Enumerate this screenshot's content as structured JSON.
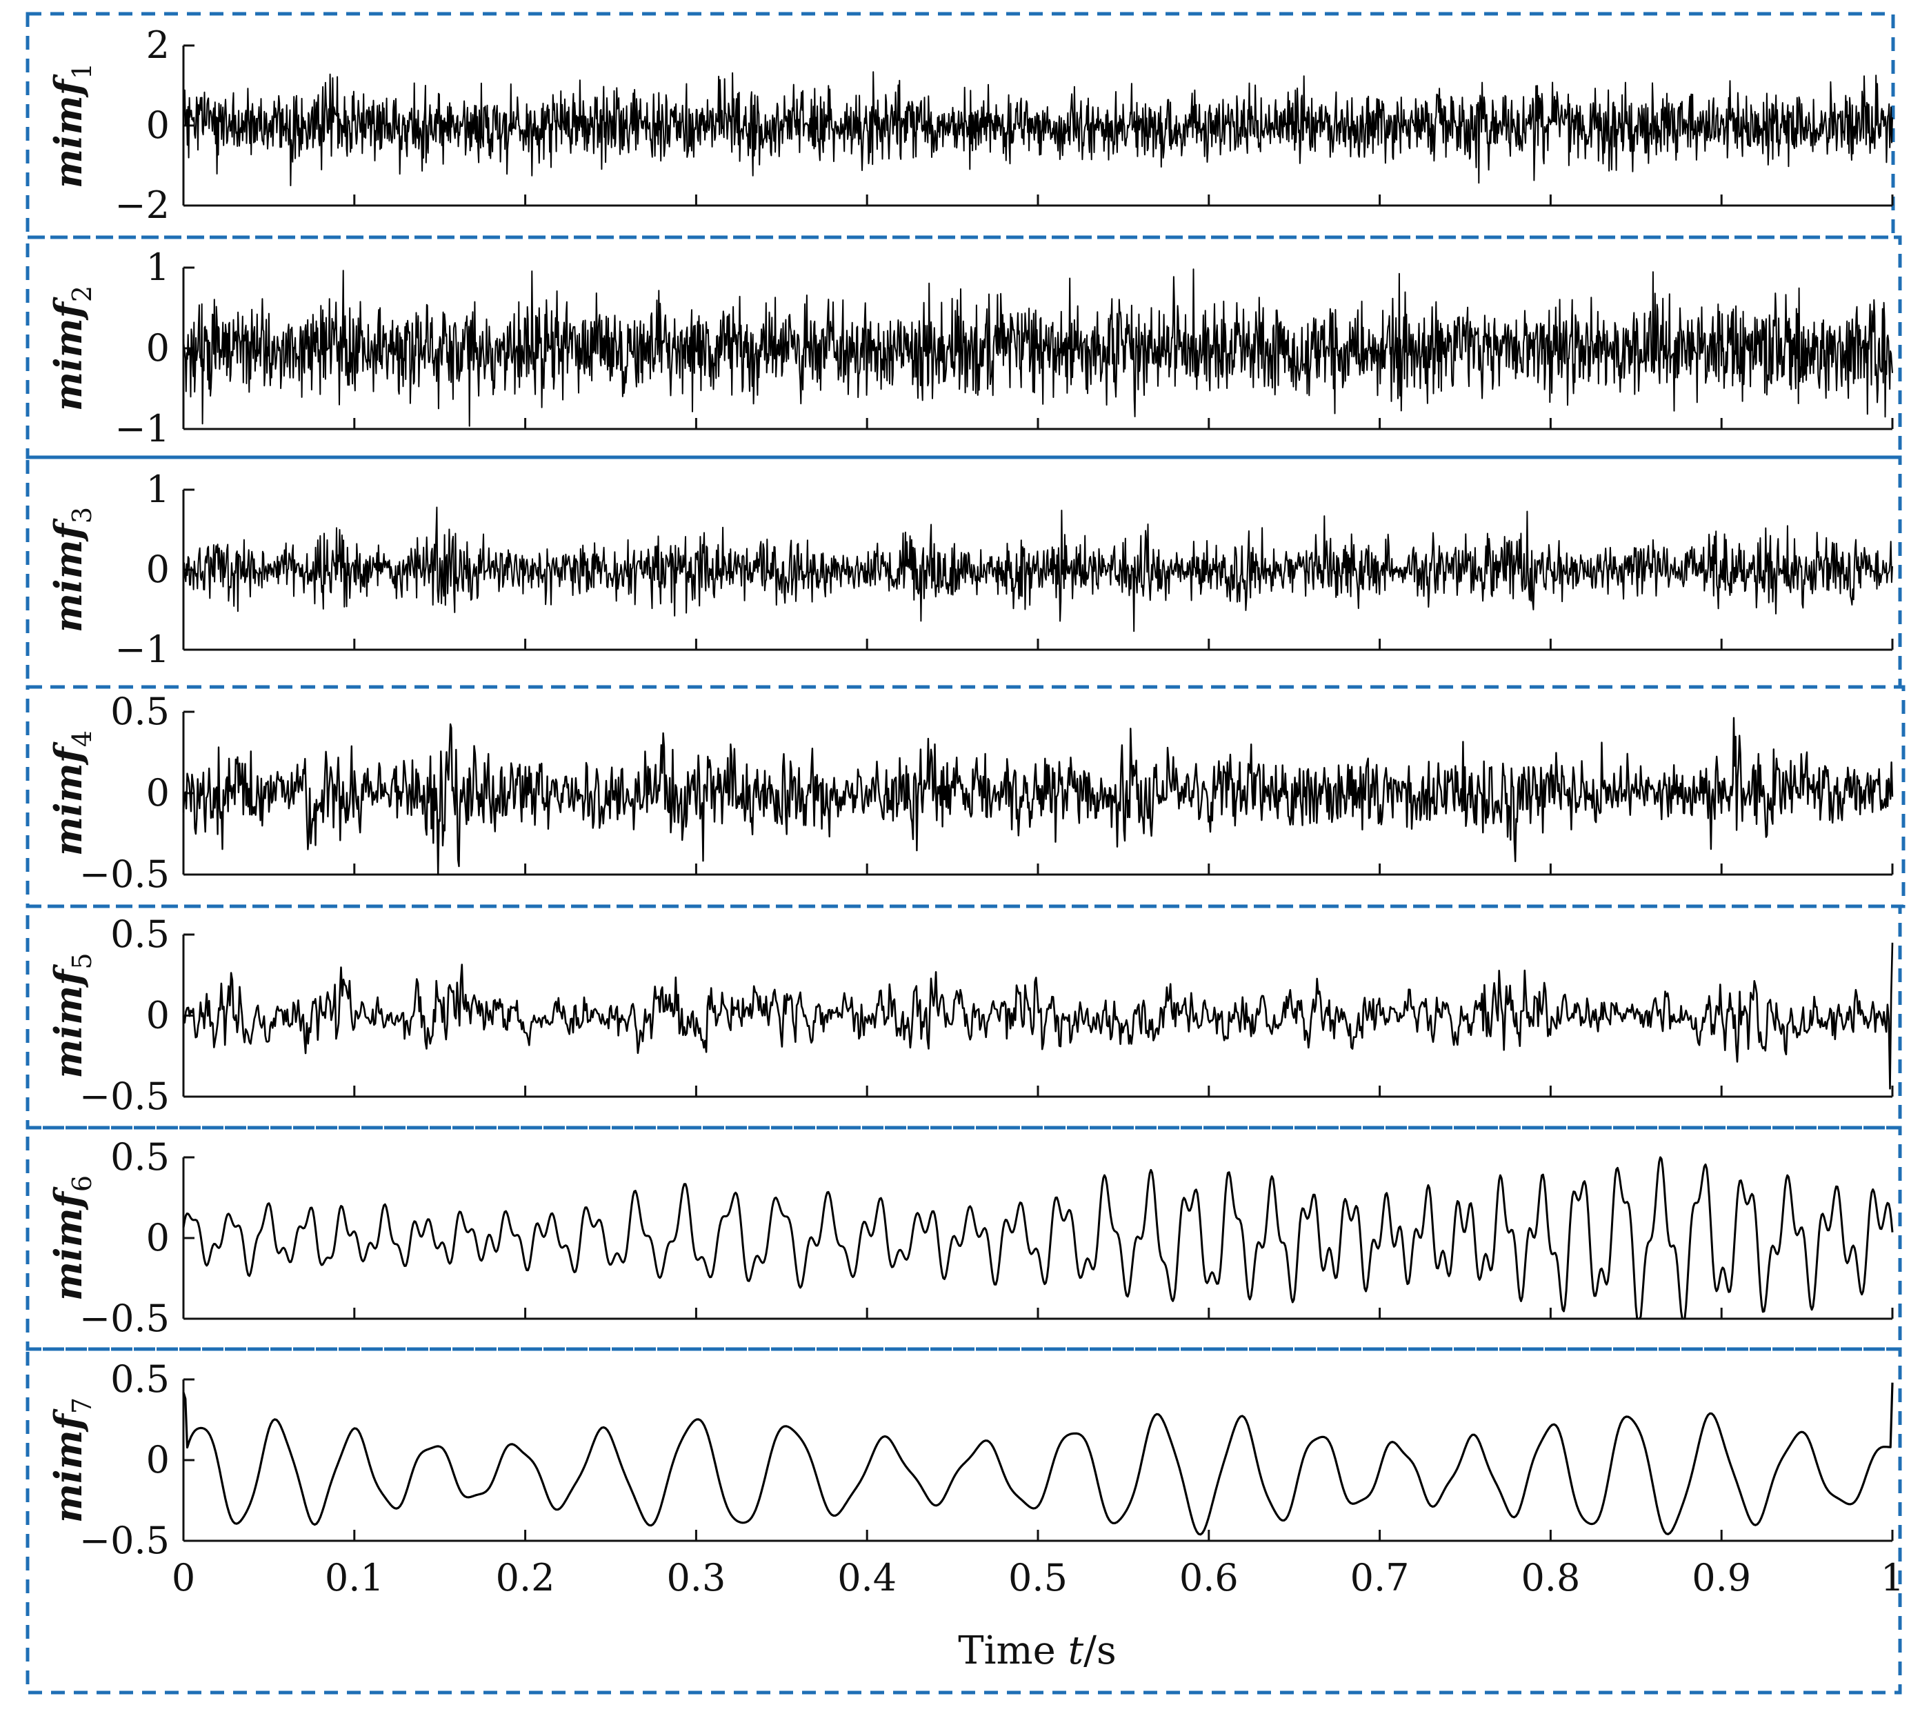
{
  "colors": {
    "panel_border": "#1f6fb5",
    "signal": "#000000",
    "axis": "#111111"
  },
  "chart_data": {
    "type": "line",
    "xlabel_parts": [
      "Time ",
      "t",
      "/s"
    ],
    "x_range": [
      0,
      1
    ],
    "x_ticks": [
      "0",
      "0.1",
      "0.2",
      "0.3",
      "0.4",
      "0.5",
      "0.6",
      "0.7",
      "0.8",
      "0.9",
      "1"
    ],
    "grid": false,
    "panels": [
      {
        "ylabel": "mimf",
        "ylabel_sub": "1",
        "ylim": [
          -2,
          2
        ],
        "y_ticks": [
          "−2",
          "0",
          "2"
        ],
        "y_tick_values": [
          -2,
          0,
          2
        ],
        "signal": "broadband noise, amplitude about ±1.5"
      },
      {
        "ylabel": "mimf",
        "ylabel_sub": "2",
        "ylim": [
          -1,
          1
        ],
        "y_ticks": [
          "−1",
          "0",
          "1"
        ],
        "y_tick_values": [
          -1,
          0,
          1
        ],
        "signal": "high-frequency noise, amplitude about ±1"
      },
      {
        "ylabel": "mimf",
        "ylabel_sub": "3",
        "ylim": [
          -1,
          1
        ],
        "y_ticks": [
          "−1",
          "0",
          "1"
        ],
        "y_tick_values": [
          -1,
          0,
          1
        ],
        "signal": "noise, amplitude about ±0.8"
      },
      {
        "ylabel": "mimf",
        "ylabel_sub": "4",
        "ylim": [
          -0.5,
          0.5
        ],
        "y_ticks": [
          "0.5",
          "0",
          "−0.5"
        ],
        "y_tick_values": [
          0.5,
          0,
          -0.5
        ],
        "signal": "bursty noise, amplitude about ±0.5"
      },
      {
        "ylabel": "mimf",
        "ylabel_sub": "5",
        "ylim": [
          -0.5,
          0.5
        ],
        "y_ticks": [
          "0.5",
          "0",
          "−0.5"
        ],
        "y_tick_values": [
          0.5,
          0,
          -0.5
        ],
        "signal": "oscillation, amplitude about ±0.3, edge spike to ±0.45 near t = 1"
      },
      {
        "ylabel": "mimf",
        "ylabel_sub": "6",
        "ylim": [
          -0.5,
          0.5
        ],
        "y_ticks": [
          "0.5",
          "0",
          "−0.5"
        ],
        "y_tick_values": [
          0.5,
          0,
          -0.5
        ],
        "signal": "oscillation, about 40 cycles, amplitude growing from 0.15 to 0.45"
      },
      {
        "ylabel": "mimf",
        "ylabel_sub": "7",
        "ylim": [
          -0.5,
          0.5
        ],
        "y_ticks": [
          "0.5",
          "0",
          "−0.5"
        ],
        "y_tick_values": [
          0.5,
          0,
          -0.5
        ],
        "signal": "oscillation, about 20 cycles, amplitude about 0.3 to 0.5, mean about −0.1"
      }
    ]
  }
}
